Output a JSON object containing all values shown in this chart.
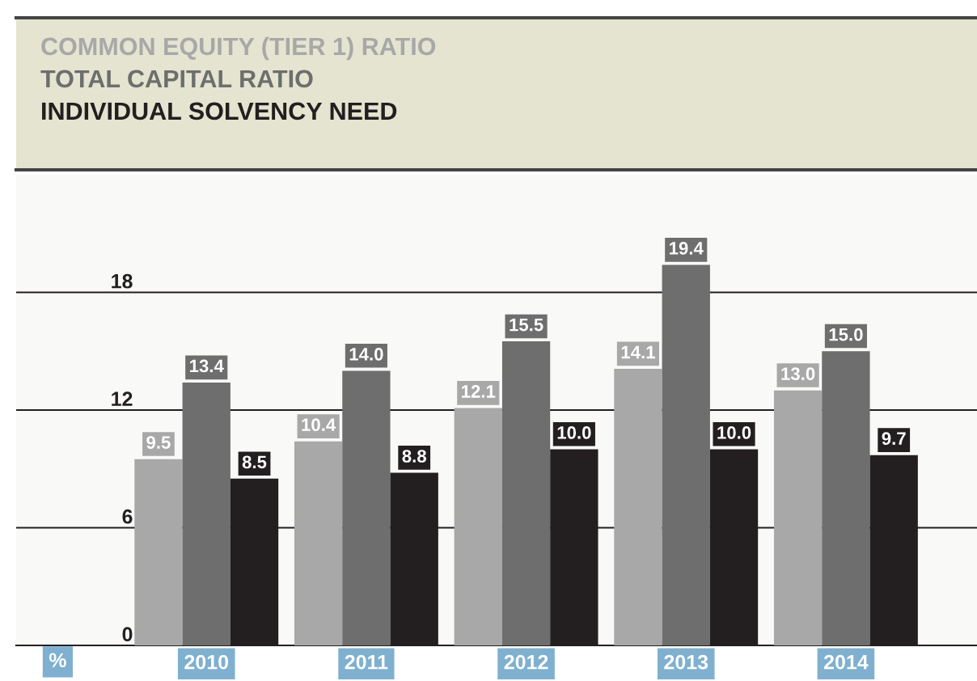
{
  "chart_data": {
    "type": "bar",
    "categories": [
      "2010",
      "2011",
      "2012",
      "2013",
      "2014"
    ],
    "series": [
      {
        "name": "COMMON EQUITY (TIER 1) RATIO",
        "color": "#a8a8a8",
        "values": [
          9.5,
          10.4,
          12.1,
          14.1,
          13.0
        ],
        "value_labels": [
          "9.5",
          "10.4",
          "12.1",
          "14.1",
          "13.0"
        ]
      },
      {
        "name": "TOTAL CAPITAL RATIO",
        "color": "#6d6e6d",
        "values": [
          13.4,
          14.0,
          15.5,
          19.4,
          15.0
        ],
        "value_labels": [
          "13.4",
          "14.0",
          "15.5",
          "19.4",
          "15.0"
        ]
      },
      {
        "name": "INDIVIDUAL SOLVENCY NEED",
        "color": "#231f20",
        "values": [
          8.5,
          8.8,
          10.0,
          10.0,
          9.7
        ],
        "value_labels": [
          "8.5",
          "8.8",
          "10.0",
          "10.0",
          "9.7"
        ]
      }
    ],
    "annotations": [
      "%"
    ],
    "ylim": [
      0,
      24
    ],
    "yticks": [
      0,
      6,
      12,
      18
    ],
    "grid": "y",
    "legend": "top left"
  }
}
